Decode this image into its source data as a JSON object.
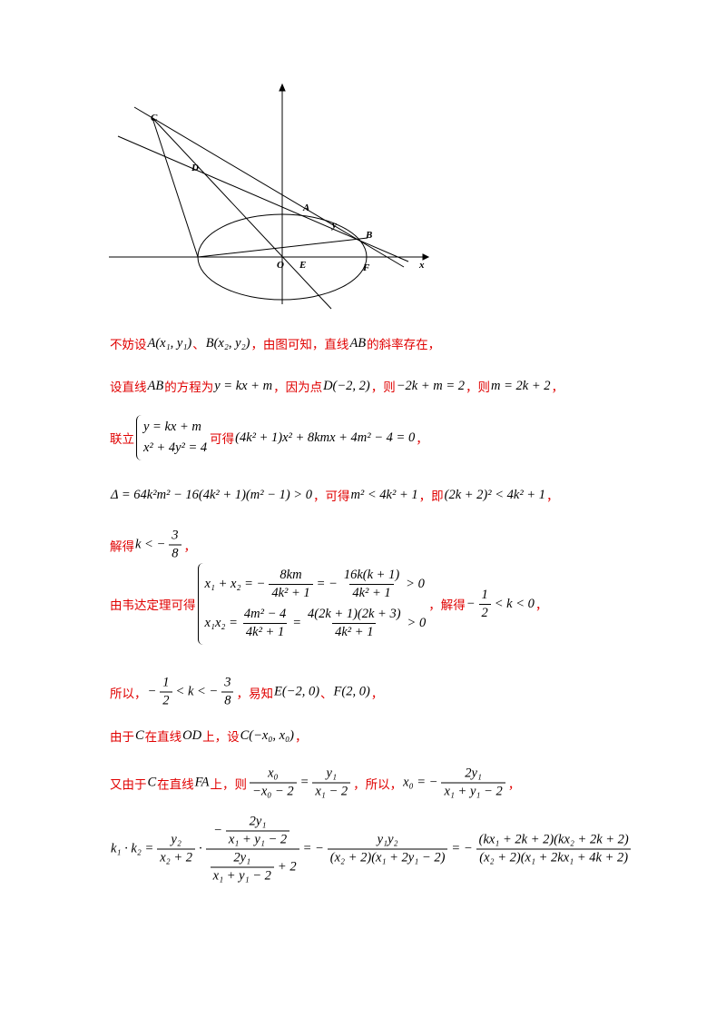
{
  "figure": {
    "labels": [
      "C",
      "D",
      "A",
      "B",
      "E",
      "O",
      "F",
      "x",
      "y"
    ]
  },
  "lines": [
    {
      "parts": [
        {
          "text": "不妨设"
        },
        {
          "math": "A(x₁, y₁)"
        },
        {
          "text": "、"
        },
        {
          "math": "B(x₂, y₂)"
        },
        {
          "text": "，由图可知，直线"
        },
        {
          "math": "AB"
        },
        {
          "text": "的斜率存在，"
        }
      ]
    },
    {
      "parts": [
        {
          "text": "设直线"
        },
        {
          "math": "AB"
        },
        {
          "text": "的方程为"
        },
        {
          "math": "y = kx + m"
        },
        {
          "text": "，因为点"
        },
        {
          "math": "D(−2, 2)"
        },
        {
          "text": "，则"
        },
        {
          "math": "−2k + m = 2"
        },
        {
          "text": "，则"
        },
        {
          "math": "m = 2k + 2"
        },
        {
          "text": "，"
        }
      ]
    },
    {
      "parts": [
        {
          "text": "联立"
        },
        {
          "sys": [
            [
              {
                "math": "y = kx + m"
              }
            ],
            [
              {
                "math": "x² + 4y² = 4"
              }
            ]
          ]
        },
        {
          "text": "可得"
        },
        {
          "math": "(4k² + 1)x² + 8kmx + 4m² − 4 = 0"
        },
        {
          "text": "，"
        }
      ]
    },
    {
      "parts": [
        {
          "math": "Δ = 64k²m² − 16(4k² + 1)(m² − 1) > 0"
        },
        {
          "text": "，可得"
        },
        {
          "math": "m² < 4k² + 1"
        },
        {
          "text": "，即"
        },
        {
          "math": "(2k + 2)² < 4k² + 1"
        },
        {
          "text": "，"
        }
      ]
    },
    {
      "parts": [
        {
          "text": "解得"
        },
        {
          "math": "k < −"
        },
        {
          "frac": [
            [
              {
                "math": "3"
              }
            ],
            [
              {
                "math": "8"
              }
            ]
          ]
        },
        {
          "text": "，"
        }
      ]
    },
    {
      "parts": [
        {
          "text": "由韦达定理可得"
        },
        {
          "sys": [
            [
              {
                "math": "x₁ + x₂ = −"
              },
              {
                "frac": [
                  [
                    {
                      "math": "8km"
                    }
                  ],
                  [
                    {
                      "math": "4k² + 1"
                    }
                  ]
                ]
              },
              {
                "math": "= −"
              },
              {
                "frac": [
                  [
                    {
                      "math": "16k(k + 1)"
                    }
                  ],
                  [
                    {
                      "math": "4k² + 1"
                    }
                  ]
                ]
              },
              {
                "math": "> 0"
              }
            ],
            [
              {
                "math": "x₁x₂ ="
              },
              {
                "frac": [
                  [
                    {
                      "math": "4m² − 4"
                    }
                  ],
                  [
                    {
                      "math": "4k² + 1"
                    }
                  ]
                ]
              },
              {
                "math": "="
              },
              {
                "frac": [
                  [
                    {
                      "math": "4(2k + 1)(2k + 3)"
                    }
                  ],
                  [
                    {
                      "math": "4k² + 1"
                    }
                  ]
                ]
              },
              {
                "math": "> 0"
              }
            ]
          ]
        },
        {
          "text": "，解得"
        },
        {
          "math": "−"
        },
        {
          "frac": [
            [
              {
                "math": "1"
              }
            ],
            [
              {
                "math": "2"
              }
            ]
          ]
        },
        {
          "math": "< k < 0"
        },
        {
          "text": "，"
        }
      ]
    },
    {
      "parts": [
        {
          "text": "所以，"
        },
        {
          "math": "−"
        },
        {
          "frac": [
            [
              {
                "math": "1"
              }
            ],
            [
              {
                "math": "2"
              }
            ]
          ]
        },
        {
          "math": "< k < −"
        },
        {
          "frac": [
            [
              {
                "math": "3"
              }
            ],
            [
              {
                "math": "8"
              }
            ]
          ]
        },
        {
          "text": "，易知"
        },
        {
          "math": "E(−2, 0)"
        },
        {
          "text": "、"
        },
        {
          "math": "F(2, 0)"
        },
        {
          "text": "，"
        }
      ]
    },
    {
      "parts": [
        {
          "text": "由于"
        },
        {
          "math": "C"
        },
        {
          "text": "在直线"
        },
        {
          "math": "OD"
        },
        {
          "text": "上，设"
        },
        {
          "math": "C(−x₀, x₀)"
        },
        {
          "text": "，"
        }
      ]
    },
    {
      "parts": [
        {
          "text": "又由于"
        },
        {
          "math": "C"
        },
        {
          "text": "在直线"
        },
        {
          "math": "FA"
        },
        {
          "text": "上，则"
        },
        {
          "frac": [
            [
              {
                "math": "x₀"
              }
            ],
            [
              {
                "math": "−x₀ − 2"
              }
            ]
          ]
        },
        {
          "math": "="
        },
        {
          "frac": [
            [
              {
                "math": "y₁"
              }
            ],
            [
              {
                "math": "x₁ − 2"
              }
            ]
          ]
        },
        {
          "text": "，所以，"
        },
        {
          "math": "x₀ = −"
        },
        {
          "frac": [
            [
              {
                "math": "2y₁"
              }
            ],
            [
              {
                "math": "x₁ + y₁ − 2"
              }
            ]
          ]
        },
        {
          "text": "，"
        }
      ]
    },
    {
      "parts": [
        {
          "math": "k₁ · k₂ ="
        },
        {
          "frac": [
            [
              {
                "math": "y₂"
              }
            ],
            [
              {
                "math": "x₂ + 2"
              }
            ]
          ]
        },
        {
          "math": "·"
        },
        {
          "frac": [
            [
              {
                "math": "−"
              },
              {
                "frac": [
                  [
                    {
                      "math": "2y₁"
                    }
                  ],
                  [
                    {
                      "math": "x₁ + y₁ − 2"
                    }
                  ]
                ]
              }
            ],
            [
              {
                "frac": [
                  [
                    {
                      "math": "2y₁"
                    }
                  ],
                  [
                    {
                      "math": "x₁ + y₁ − 2"
                    }
                  ]
                ]
              },
              {
                "math": "+ 2"
              }
            ]
          ]
        },
        {
          "math": "= −"
        },
        {
          "frac": [
            [
              {
                "math": "y₁y₂"
              }
            ],
            [
              {
                "math": "(x₂ + 2)(x₁ + 2y₁ − 2)"
              }
            ]
          ]
        },
        {
          "math": "= −"
        },
        {
          "frac": [
            [
              {
                "math": "(kx₁ + 2k + 2)(kx₂ + 2k + 2)"
              }
            ],
            [
              {
                "math": "(x₂ + 2)(x₁ + 2kx₁ + 4k + 2)"
              }
            ]
          ]
        }
      ]
    }
  ]
}
